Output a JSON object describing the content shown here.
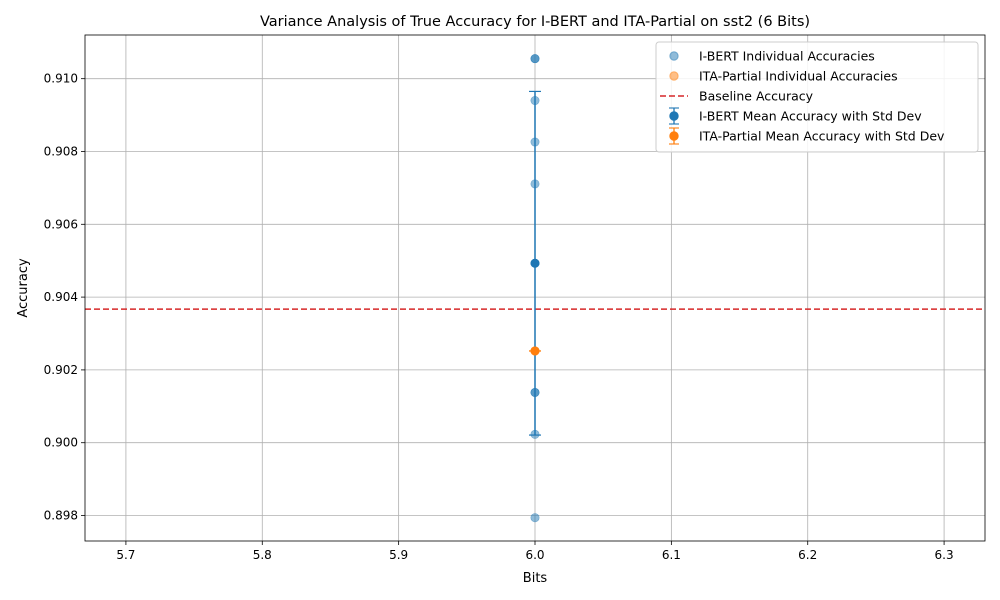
{
  "chart_data": {
    "type": "scatter",
    "title": "Variance Analysis of True Accuracy for I-BERT and ITA-Partial on sst2 (6 Bits)",
    "xlabel": "Bits",
    "ylabel": "Accuracy",
    "xlim": [
      5.67,
      6.33
    ],
    "ylim": [
      0.8973,
      0.9112
    ],
    "xticks": [
      5.7,
      5.8,
      5.9,
      6.0,
      6.1,
      6.2,
      6.3
    ],
    "xtick_labels": [
      "5.7",
      "5.8",
      "5.9",
      "6.0",
      "6.1",
      "6.2",
      "6.3"
    ],
    "yticks": [
      0.898,
      0.9,
      0.902,
      0.904,
      0.906,
      0.908,
      0.91
    ],
    "ytick_labels": [
      "0.898",
      "0.900",
      "0.902",
      "0.904",
      "0.906",
      "0.908",
      "0.910"
    ],
    "grid": true,
    "legend_position": "top-right",
    "baseline": {
      "name": "Baseline Accuracy",
      "value": 0.90367,
      "color": "#d62728"
    },
    "series": [
      {
        "name": "I-BERT Individual Accuracies",
        "kind": "scatter",
        "color": "#1f77b4",
        "x": [
          6.0,
          6.0,
          6.0,
          6.0,
          6.0,
          6.0,
          6.0,
          6.0,
          6.0,
          6.0,
          6.0
        ],
        "y": [
          0.91055,
          0.91055,
          0.9094,
          0.90826,
          0.90711,
          0.90493,
          0.90493,
          0.90138,
          0.90138,
          0.90023,
          0.89794
        ]
      },
      {
        "name": "ITA-Partial Individual Accuracies",
        "kind": "scatter",
        "color": "#ff7f0e",
        "x": [
          6.0,
          6.0,
          6.0
        ],
        "y": [
          0.90252,
          0.90252,
          0.90252
        ]
      },
      {
        "name": "I-BERT Mean Accuracy with Std Dev",
        "kind": "errorbar",
        "color": "#1f77b4",
        "x": [
          6.0
        ],
        "y": [
          0.90493
        ],
        "yerr": [
          0.00472
        ]
      },
      {
        "name": "ITA-Partial Mean Accuracy with Std Dev",
        "kind": "errorbar",
        "color": "#ff7f0e",
        "x": [
          6.0
        ],
        "y": [
          0.90252
        ],
        "yerr": [
          0.0
        ]
      }
    ]
  }
}
